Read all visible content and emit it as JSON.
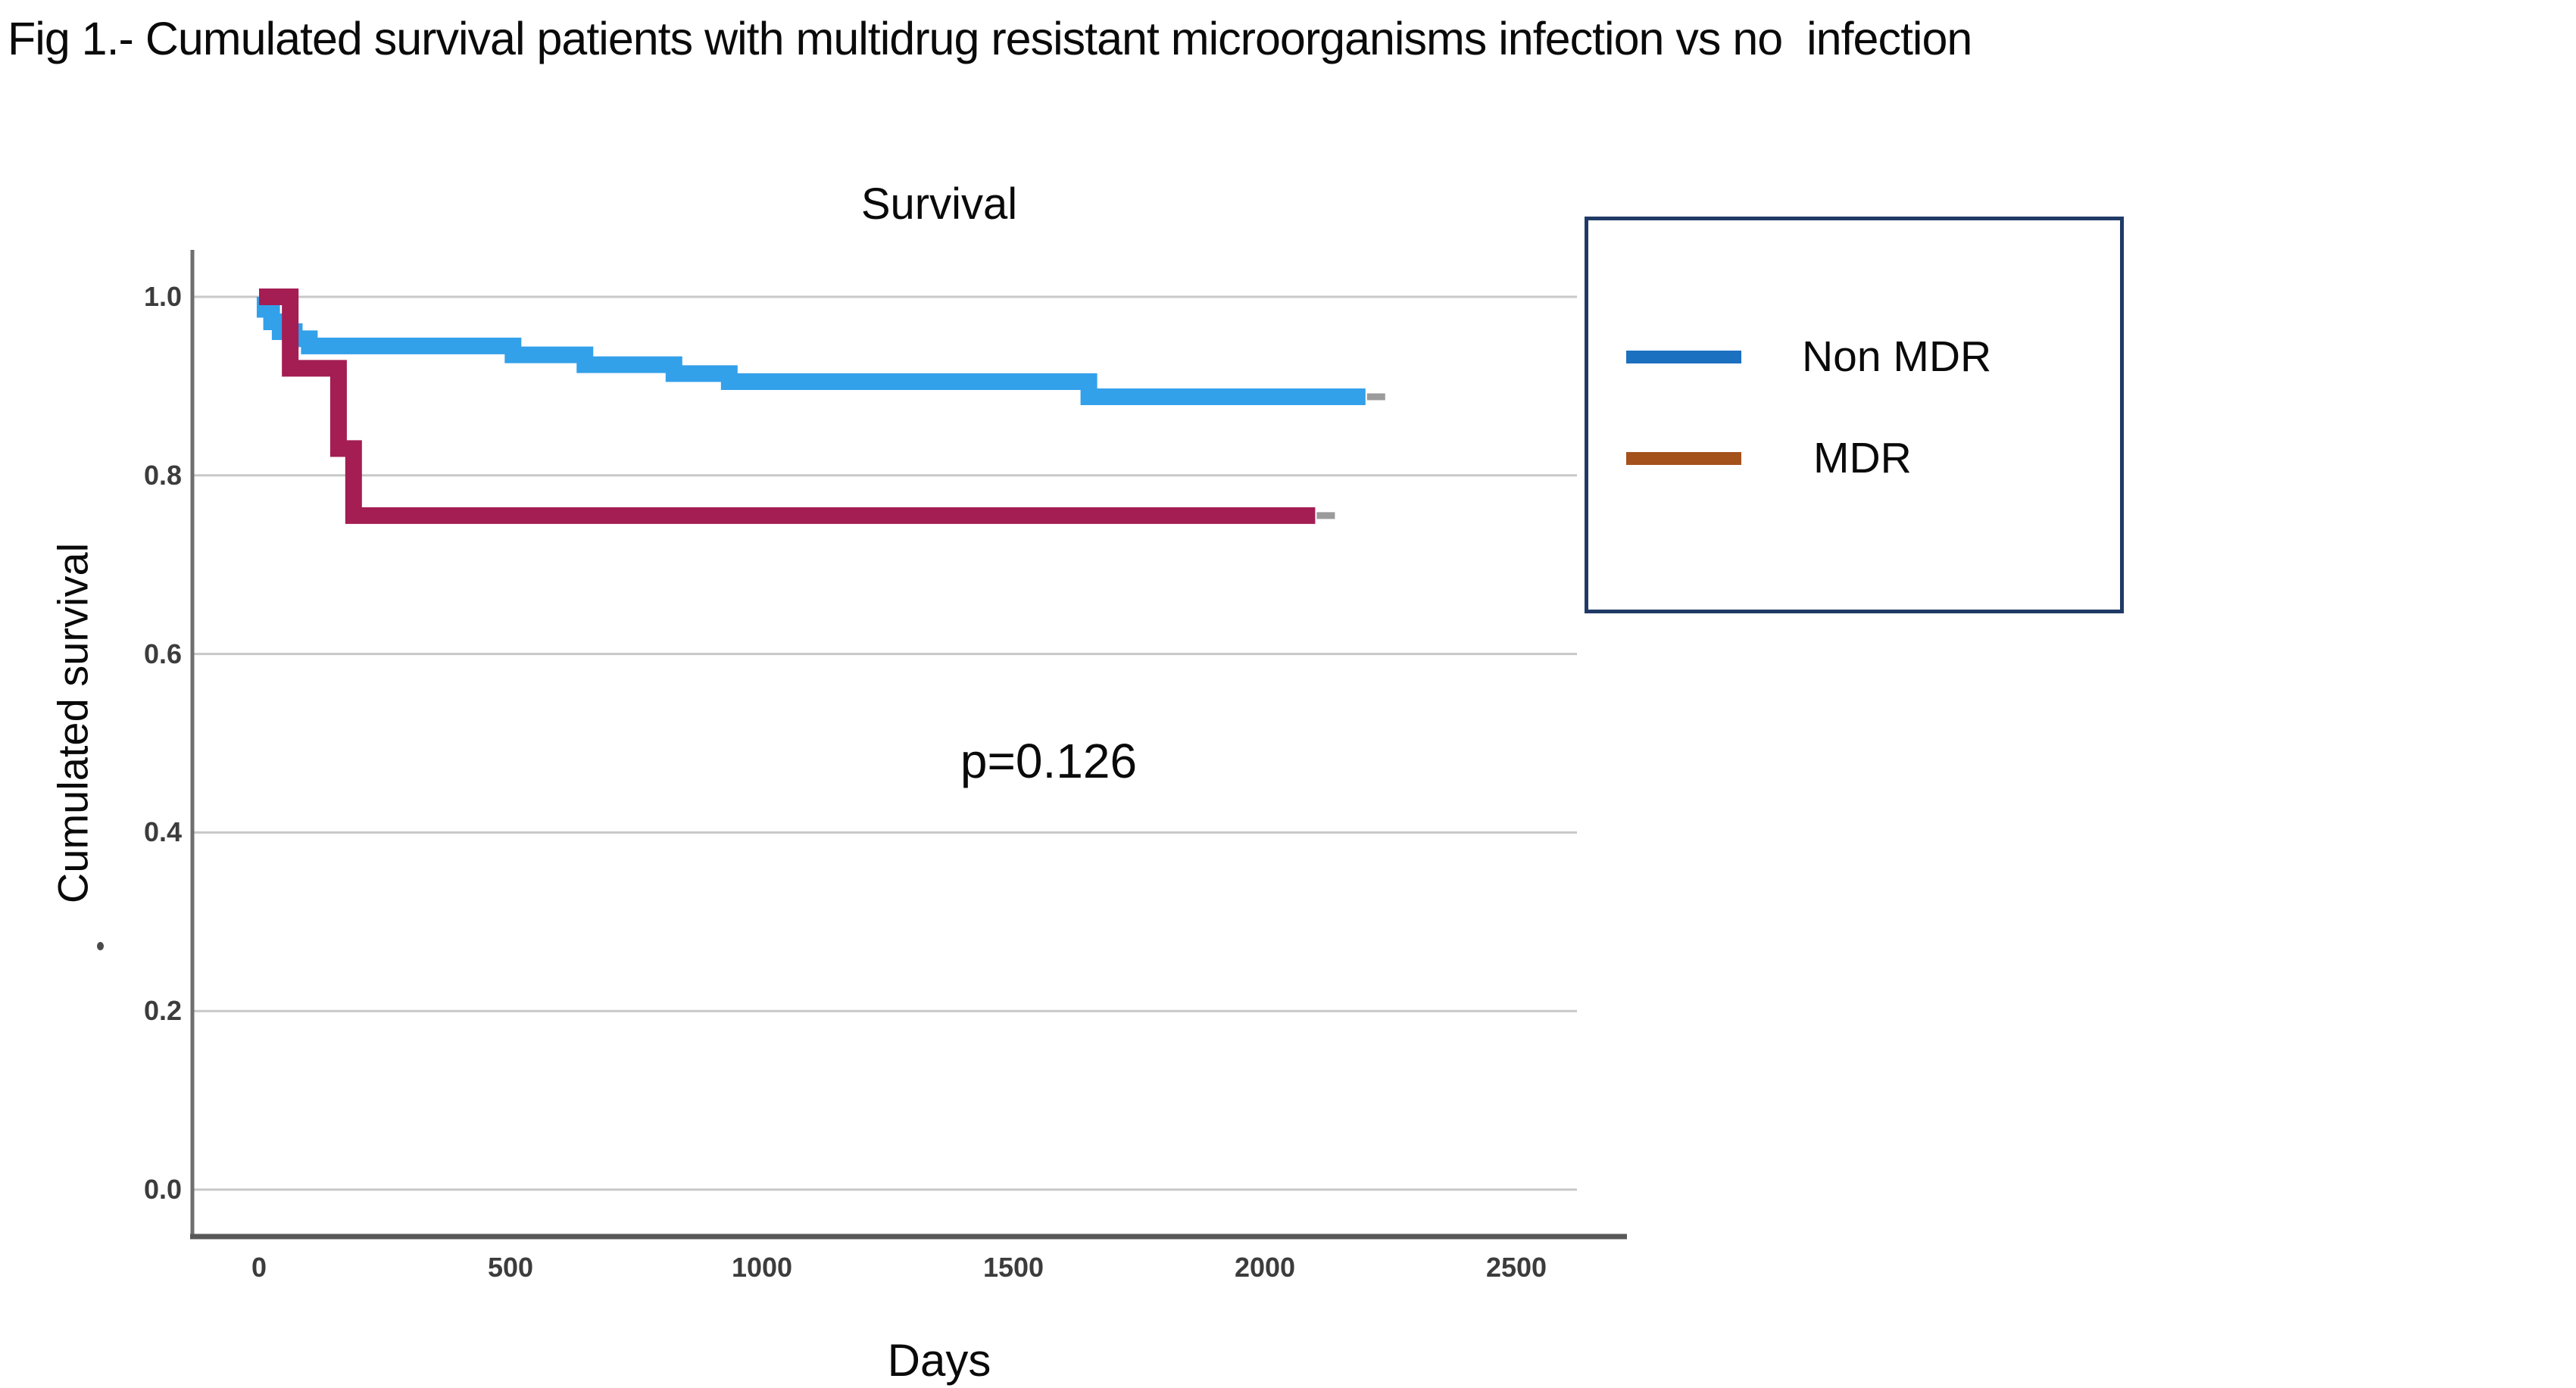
{
  "figure": {
    "caption": "Fig 1.- Cumulated survival patients with multidrug resistant microorganisms infection vs no  infection"
  },
  "chart_data": {
    "type": "line",
    "subtype": "kaplan_meier_step",
    "title": "Survival",
    "xlabel": "Days",
    "ylabel": "Cumulated survival",
    "xlim": [
      0,
      2640
    ],
    "ylim": [
      0.0,
      1.0
    ],
    "grid": "horizontal-only",
    "x_ticks": [
      {
        "label": "0",
        "value": 0
      },
      {
        "label": "500",
        "value": 500
      },
      {
        "label": "1000",
        "value": 1000
      },
      {
        "label": "1500",
        "value": 1500
      },
      {
        "label": "2000",
        "value": 2000
      },
      {
        "label": "2500",
        "value": 2500
      }
    ],
    "y_ticks": [
      {
        "label": "1.0",
        "value": 1.0
      },
      {
        "label": "0.8",
        "value": 0.8
      },
      {
        "label": "0.6",
        "value": 0.6
      },
      {
        "label": "0.4",
        "value": 0.4
      },
      {
        "label": "0.2",
        "value": 0.2
      },
      {
        "label": "0.0",
        "value": 0.0
      }
    ],
    "annotation": {
      "text": "p=0.126",
      "day": 1570,
      "value": 0.48
    },
    "legend": {
      "position": "outside-right",
      "border_color": "#203a66",
      "entries": [
        {
          "label": "Non MDR",
          "swatch_color": "#1c70c0"
        },
        {
          "label": "MDR",
          "swatch_color": "#a5511c"
        }
      ]
    },
    "series": [
      {
        "name": "Non MDR",
        "color": "#33a0ea",
        "censored_end": true,
        "points": [
          [
            0,
            1.0
          ],
          [
            12,
            0.986
          ],
          [
            25,
            0.972
          ],
          [
            42,
            0.961
          ],
          [
            70,
            0.953
          ],
          [
            100,
            0.945
          ],
          [
            505,
            0.935
          ],
          [
            648,
            0.924
          ],
          [
            825,
            0.914
          ],
          [
            935,
            0.905
          ],
          [
            1650,
            0.888
          ],
          [
            2200,
            0.888
          ]
        ]
      },
      {
        "name": "MDR",
        "color": "#a41d53",
        "censored_end": true,
        "points": [
          [
            0,
            1.0
          ],
          [
            62,
            0.92
          ],
          [
            158,
            0.83
          ],
          [
            188,
            0.755
          ],
          [
            2100,
            0.755
          ]
        ]
      }
    ]
  },
  "colors": {
    "gridline": "#c8c8c8",
    "y_axis_line": "#6f6f6f",
    "x_axis_line": "#585858",
    "tick_text": "#3c3c3c",
    "censor_tick": "#9b9b9b"
  }
}
